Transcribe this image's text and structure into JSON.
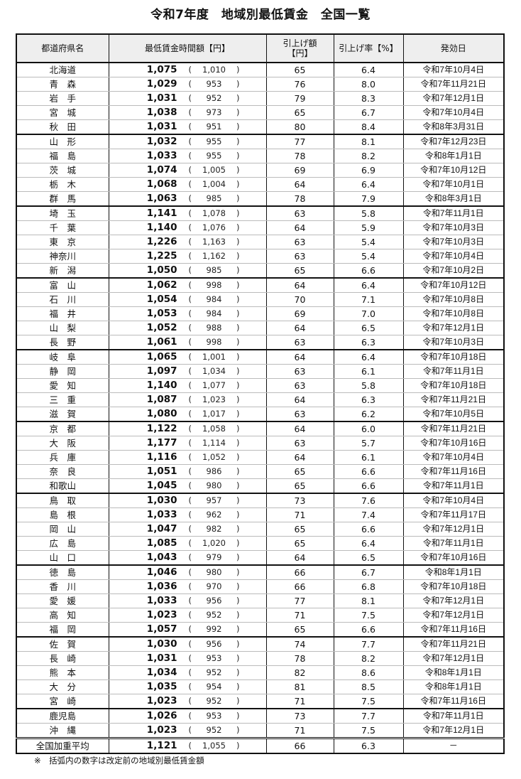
{
  "title": "令和7年度　地域別最低賃金　全国一覧",
  "headers": {
    "prefecture": "都道府県名",
    "wage": "最低賃金時間額【円】",
    "raise_amount_1": "引上げ額",
    "raise_amount_2": "【円】",
    "raise_rate": "引上げ率【%】",
    "effective_date": "発効日"
  },
  "rows": [
    {
      "name": "北海道",
      "wage": "1,075",
      "prev": "1,010",
      "amt": "65",
      "rate": "6.4",
      "date": "令和7年10月4日"
    },
    {
      "name": "青　森",
      "wage": "1,029",
      "prev": "953",
      "amt": "76",
      "rate": "8.0",
      "date": "令和7年11月21日"
    },
    {
      "name": "岩　手",
      "wage": "1,031",
      "prev": "952",
      "amt": "79",
      "rate": "8.3",
      "date": "令和7年12月1日"
    },
    {
      "name": "宮　城",
      "wage": "1,038",
      "prev": "973",
      "amt": "65",
      "rate": "6.7",
      "date": "令和7年10月4日"
    },
    {
      "name": "秋　田",
      "wage": "1,031",
      "prev": "951",
      "amt": "80",
      "rate": "8.4",
      "date": "令和8年3月31日"
    },
    {
      "name": "山　形",
      "wage": "1,032",
      "prev": "955",
      "amt": "77",
      "rate": "8.1",
      "date": "令和7年12月23日"
    },
    {
      "name": "福　島",
      "wage": "1,033",
      "prev": "955",
      "amt": "78",
      "rate": "8.2",
      "date": "令和8年1月1日"
    },
    {
      "name": "茨　城",
      "wage": "1,074",
      "prev": "1,005",
      "amt": "69",
      "rate": "6.9",
      "date": "令和7年10月12日"
    },
    {
      "name": "栃　木",
      "wage": "1,068",
      "prev": "1,004",
      "amt": "64",
      "rate": "6.4",
      "date": "令和7年10月1日"
    },
    {
      "name": "群　馬",
      "wage": "1,063",
      "prev": "985",
      "amt": "78",
      "rate": "7.9",
      "date": "令和8年3月1日"
    },
    {
      "name": "埼　玉",
      "wage": "1,141",
      "prev": "1,078",
      "amt": "63",
      "rate": "5.8",
      "date": "令和7年11月1日"
    },
    {
      "name": "千　葉",
      "wage": "1,140",
      "prev": "1,076",
      "amt": "64",
      "rate": "5.9",
      "date": "令和7年10月3日"
    },
    {
      "name": "東　京",
      "wage": "1,226",
      "prev": "1,163",
      "amt": "63",
      "rate": "5.4",
      "date": "令和7年10月3日"
    },
    {
      "name": "神奈川",
      "wage": "1,225",
      "prev": "1,162",
      "amt": "63",
      "rate": "5.4",
      "date": "令和7年10月4日"
    },
    {
      "name": "新　潟",
      "wage": "1,050",
      "prev": "985",
      "amt": "65",
      "rate": "6.6",
      "date": "令和7年10月2日"
    },
    {
      "name": "富　山",
      "wage": "1,062",
      "prev": "998",
      "amt": "64",
      "rate": "6.4",
      "date": "令和7年10月12日"
    },
    {
      "name": "石　川",
      "wage": "1,054",
      "prev": "984",
      "amt": "70",
      "rate": "7.1",
      "date": "令和7年10月8日"
    },
    {
      "name": "福　井",
      "wage": "1,053",
      "prev": "984",
      "amt": "69",
      "rate": "7.0",
      "date": "令和7年10月8日"
    },
    {
      "name": "山　梨",
      "wage": "1,052",
      "prev": "988",
      "amt": "64",
      "rate": "6.5",
      "date": "令和7年12月1日"
    },
    {
      "name": "長　野",
      "wage": "1,061",
      "prev": "998",
      "amt": "63",
      "rate": "6.3",
      "date": "令和7年10月3日"
    },
    {
      "name": "岐　阜",
      "wage": "1,065",
      "prev": "1,001",
      "amt": "64",
      "rate": "6.4",
      "date": "令和7年10月18日"
    },
    {
      "name": "静　岡",
      "wage": "1,097",
      "prev": "1,034",
      "amt": "63",
      "rate": "6.1",
      "date": "令和7年11月1日"
    },
    {
      "name": "愛　知",
      "wage": "1,140",
      "prev": "1,077",
      "amt": "63",
      "rate": "5.8",
      "date": "令和7年10月18日"
    },
    {
      "name": "三　重",
      "wage": "1,087",
      "prev": "1,023",
      "amt": "64",
      "rate": "6.3",
      "date": "令和7年11月21日"
    },
    {
      "name": "滋　賀",
      "wage": "1,080",
      "prev": "1,017",
      "amt": "63",
      "rate": "6.2",
      "date": "令和7年10月5日"
    },
    {
      "name": "京　都",
      "wage": "1,122",
      "prev": "1,058",
      "amt": "64",
      "rate": "6.0",
      "date": "令和7年11月21日"
    },
    {
      "name": "大　阪",
      "wage": "1,177",
      "prev": "1,114",
      "amt": "63",
      "rate": "5.7",
      "date": "令和7年10月16日"
    },
    {
      "name": "兵　庫",
      "wage": "1,116",
      "prev": "1,052",
      "amt": "64",
      "rate": "6.1",
      "date": "令和7年10月4日"
    },
    {
      "name": "奈　良",
      "wage": "1,051",
      "prev": "986",
      "amt": "65",
      "rate": "6.6",
      "date": "令和7年11月16日"
    },
    {
      "name": "和歌山",
      "wage": "1,045",
      "prev": "980",
      "amt": "65",
      "rate": "6.6",
      "date": "令和7年11月1日"
    },
    {
      "name": "鳥　取",
      "wage": "1,030",
      "prev": "957",
      "amt": "73",
      "rate": "7.6",
      "date": "令和7年10月4日"
    },
    {
      "name": "島　根",
      "wage": "1,033",
      "prev": "962",
      "amt": "71",
      "rate": "7.4",
      "date": "令和7年11月17日"
    },
    {
      "name": "岡　山",
      "wage": "1,047",
      "prev": "982",
      "amt": "65",
      "rate": "6.6",
      "date": "令和7年12月1日"
    },
    {
      "name": "広　島",
      "wage": "1,085",
      "prev": "1,020",
      "amt": "65",
      "rate": "6.4",
      "date": "令和7年11月1日"
    },
    {
      "name": "山　口",
      "wage": "1,043",
      "prev": "979",
      "amt": "64",
      "rate": "6.5",
      "date": "令和7年10月16日"
    },
    {
      "name": "徳　島",
      "wage": "1,046",
      "prev": "980",
      "amt": "66",
      "rate": "6.7",
      "date": "令和8年1月1日"
    },
    {
      "name": "香　川",
      "wage": "1,036",
      "prev": "970",
      "amt": "66",
      "rate": "6.8",
      "date": "令和7年10月18日"
    },
    {
      "name": "愛　媛",
      "wage": "1,033",
      "prev": "956",
      "amt": "77",
      "rate": "8.1",
      "date": "令和7年12月1日"
    },
    {
      "name": "高　知",
      "wage": "1,023",
      "prev": "952",
      "amt": "71",
      "rate": "7.5",
      "date": "令和7年12月1日"
    },
    {
      "name": "福　岡",
      "wage": "1,057",
      "prev": "992",
      "amt": "65",
      "rate": "6.6",
      "date": "令和7年11月16日"
    },
    {
      "name": "佐　賀",
      "wage": "1,030",
      "prev": "956",
      "amt": "74",
      "rate": "7.7",
      "date": "令和7年11月21日"
    },
    {
      "name": "長　崎",
      "wage": "1,031",
      "prev": "953",
      "amt": "78",
      "rate": "8.2",
      "date": "令和7年12月1日"
    },
    {
      "name": "熊　本",
      "wage": "1,034",
      "prev": "952",
      "amt": "82",
      "rate": "8.6",
      "date": "令和8年1月1日"
    },
    {
      "name": "大　分",
      "wage": "1,035",
      "prev": "954",
      "amt": "81",
      "rate": "8.5",
      "date": "令和8年1月1日"
    },
    {
      "name": "宮　崎",
      "wage": "1,023",
      "prev": "952",
      "amt": "71",
      "rate": "7.5",
      "date": "令和7年11月16日"
    },
    {
      "name": "鹿児島",
      "wage": "1,026",
      "prev": "953",
      "amt": "73",
      "rate": "7.7",
      "date": "令和7年11月1日"
    },
    {
      "name": "沖　縄",
      "wage": "1,023",
      "prev": "952",
      "amt": "71",
      "rate": "7.5",
      "date": "令和7年12月1日"
    }
  ],
  "total": {
    "name": "全国加重平均",
    "wage": "1,121",
    "prev": "1,055",
    "amt": "66",
    "rate": "6.3",
    "date": "－"
  },
  "note": "※　括弧内の数字は改定前の地域別最低賃金額"
}
